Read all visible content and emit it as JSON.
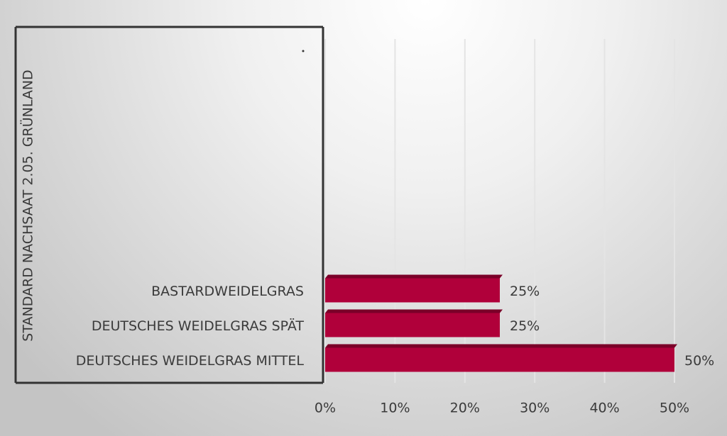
{
  "chart_data": {
    "type": "bar",
    "orientation": "horizontal",
    "y_label": "STANDARD NACHSAAT 2.05. GRÜNLAND",
    "categories": [
      "BASTARDWEIDELGRAS",
      "DEUTSCHES WEIDELGRAS SPÄT",
      "DEUTSCHES WEIDELGRAS MITTEL"
    ],
    "values": [
      25,
      25,
      50
    ],
    "value_labels": [
      "25%",
      "25%",
      "50%"
    ],
    "color": "#b0003a",
    "xlim": [
      0,
      50
    ],
    "xticks": [
      {
        "value": 0,
        "label": "0%"
      },
      {
        "value": 10,
        "label": "10%"
      },
      {
        "value": 20,
        "label": "20%"
      },
      {
        "value": 30,
        "label": "30%"
      },
      {
        "value": 40,
        "label": "40%"
      },
      {
        "value": 50,
        "label": "50%"
      }
    ],
    "grid": true
  }
}
